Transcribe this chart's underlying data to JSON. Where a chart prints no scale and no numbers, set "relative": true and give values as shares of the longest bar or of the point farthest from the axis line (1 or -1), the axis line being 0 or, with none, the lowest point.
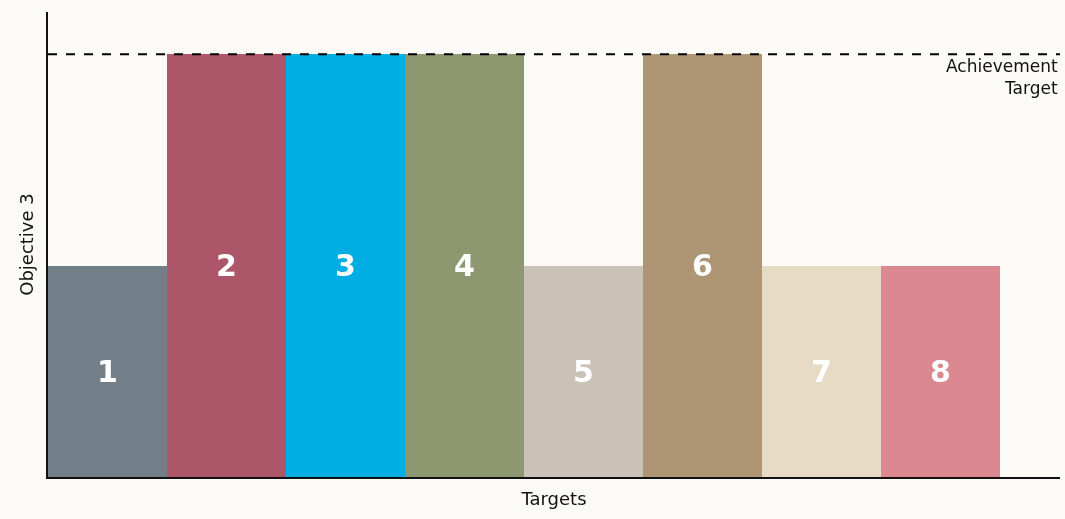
{
  "chart_data": {
    "type": "bar",
    "relative": true,
    "xlabel": "Targets",
    "ylabel": "Objective 3",
    "categories": [
      "1",
      "2",
      "3",
      "4",
      "5",
      "6",
      "7",
      "8"
    ],
    "values": [
      0.5,
      1,
      1,
      1,
      0.5,
      1,
      0.5,
      0.5
    ],
    "colors": [
      "#737f88",
      "#ad566a",
      "#00aee4",
      "#8e9870",
      "#cbc2b7",
      "#ae9674",
      "#e7dbc6",
      "#dc8890"
    ],
    "ref_lines": [
      {
        "axis": "y",
        "value": 1,
        "label": "Achievement Target",
        "color": "#000000",
        "line_style": "dashed"
      }
    ],
    "tick_labels": false
  }
}
